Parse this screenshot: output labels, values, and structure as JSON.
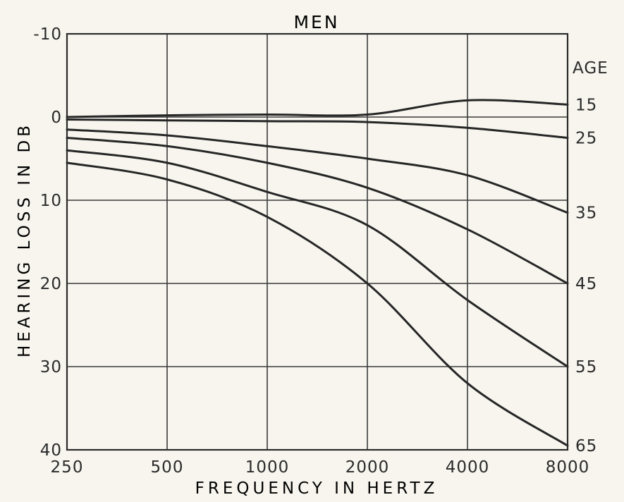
{
  "chart_data": {
    "type": "line",
    "title": "MEN",
    "xlabel": "FREQUENCY IN HERTZ",
    "ylabel": "HEARING LOSS IN DB",
    "right_axis_label": "AGE",
    "x": [
      250,
      500,
      1000,
      2000,
      4000,
      8000
    ],
    "x_tick_labels": [
      "250",
      "500",
      "1000",
      "2000",
      "4000",
      "8000"
    ],
    "x_scale": "log2",
    "ylim": [
      -10,
      40
    ],
    "y_inverted": true,
    "y_ticks": [
      -10,
      0,
      10,
      20,
      30,
      40
    ],
    "y_tick_labels": [
      "-10",
      "0",
      "10",
      "20",
      "30",
      "40"
    ],
    "grid": true,
    "series": [
      {
        "name": "15",
        "values": [
          0,
          -0.2,
          -0.3,
          -0.3,
          -2.0,
          -1.5
        ]
      },
      {
        "name": "25",
        "values": [
          0.3,
          0.4,
          0.5,
          0.6,
          1.3,
          2.5
        ]
      },
      {
        "name": "35",
        "values": [
          1.5,
          2.2,
          3.5,
          5.0,
          7.0,
          11.5
        ]
      },
      {
        "name": "45",
        "values": [
          2.5,
          3.5,
          5.5,
          8.5,
          13.5,
          20.0
        ]
      },
      {
        "name": "55",
        "values": [
          4.0,
          5.5,
          9.0,
          13.0,
          22.0,
          30.0
        ]
      },
      {
        "name": "65",
        "values": [
          5.5,
          7.5,
          12.0,
          20.0,
          32.0,
          39.5
        ]
      }
    ]
  }
}
